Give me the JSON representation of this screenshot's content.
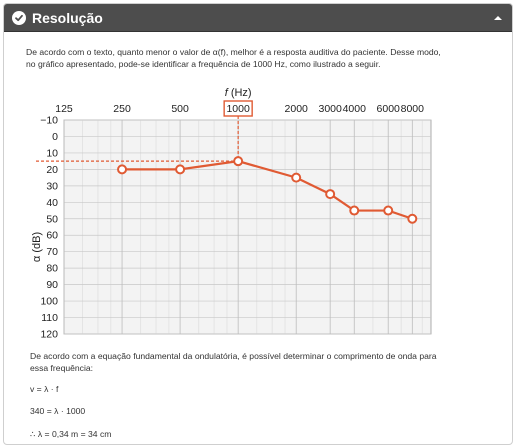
{
  "header": {
    "title": "Resolução"
  },
  "intro": {
    "line1": "De acordo com o texto, quanto menor o valor de α(f), melhor é a resposta auditiva do paciente. Desse modo,",
    "line2": "no gráfico apresentado, pode-se identificar a frequência de 1000 Hz, como ilustrado a seguir."
  },
  "chart_data": {
    "type": "line",
    "xlabel_symbol": "f",
    "xlabel_unit": "(Hz)",
    "ylabel": "α (dB)",
    "x_ticks": [
      "125",
      "250",
      "500",
      "1000",
      "2000",
      "3000",
      "4000",
      "6000",
      "8000"
    ],
    "x_tick_values": [
      125,
      250,
      500,
      1000,
      2000,
      3000,
      4000,
      6000,
      8000
    ],
    "y_ticks": [
      "−10",
      "0",
      "10",
      "20",
      "30",
      "40",
      "50",
      "60",
      "70",
      "80",
      "90",
      "100",
      "110",
      "120"
    ],
    "ylim": [
      -10,
      120
    ],
    "xlim": [
      125,
      10000
    ],
    "x_scale": "log",
    "y_inverted": true,
    "highlight_x": "1000",
    "series": [
      {
        "x": [
          250,
          500,
          1000,
          2000,
          3000,
          4000,
          6000,
          8000
        ],
        "y": [
          20,
          20,
          15,
          25,
          35,
          45,
          45,
          50
        ]
      }
    ],
    "marker_x": 1000,
    "marker_y": 15,
    "series_color": "#e05a33",
    "grid": true
  },
  "after": {
    "line1": "De acordo com a equação fundamental da ondulatória, é possível determinar o comprimento de onda para",
    "line2": "essa frequência:",
    "eq1": "v = λ · f",
    "eq2": "340 = λ · 1000",
    "eq3": "∴ λ = 0,34 m = 34 cm"
  }
}
